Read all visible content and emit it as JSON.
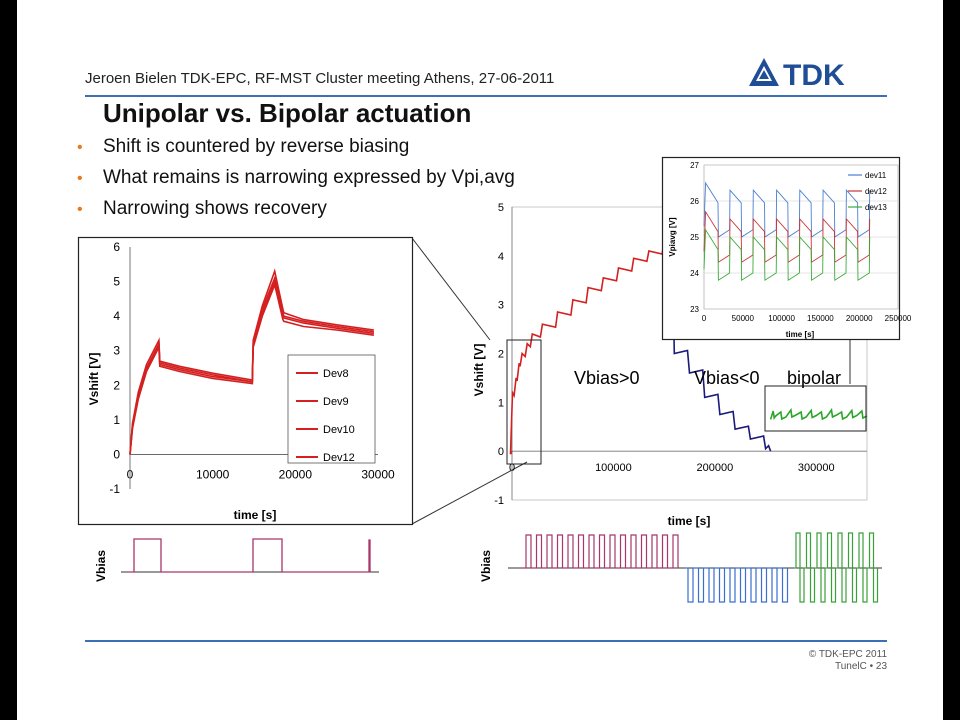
{
  "header": {
    "text": "Jeroen Bielen TDK-EPC, RF-MST Cluster meeting Athens, 27-06-2011",
    "logo_text": "TDK"
  },
  "title": "Unipolar vs. Bipolar actuation",
  "bullets": [
    "Shift is countered by reverse biasing",
    "What remains is narrowing expressed by Vpi,avg",
    "Narrowing shows recovery"
  ],
  "footer": {
    "copyright": "© TDK-EPC 2011",
    "page": "TunelC • 23"
  },
  "colors": {
    "accent_rule": "#3d6fb4",
    "bullet": "#e8791d",
    "red_series": "#d42020",
    "navy_series": "#1a1a7a",
    "green_series": "#2aa62a",
    "vbias_pulse": "#a8366a",
    "vbias_neg": "#3a6fd0",
    "vbias_bipolar": "#3aa03a"
  },
  "chart_data": [
    {
      "type": "line",
      "xlabel": "time [s]",
      "ylabel": "Vshift [V]",
      "xlim": [
        0,
        30000
      ],
      "ylim": [
        -1,
        6
      ],
      "xticks": [
        "0",
        "10000",
        "20000",
        "30000"
      ],
      "yticks": [
        "-1",
        "0",
        "1",
        "2",
        "3",
        "4",
        "5",
        "6"
      ],
      "legend": [
        "Dev8",
        "Dev9",
        "Dev10",
        "Dev12"
      ],
      "legend_position": "right",
      "series": [
        {
          "name": "Dev8",
          "x": [
            0,
            300,
            1000,
            2000,
            3500,
            3600,
            6000,
            10000,
            14800,
            14900,
            16000,
            17500,
            18500,
            18600,
            21000,
            25000,
            29500
          ],
          "y": [
            0,
            0.9,
            1.8,
            2.6,
            3.3,
            2.7,
            2.55,
            2.35,
            2.15,
            3.3,
            4.3,
            5.3,
            4.2,
            4.1,
            3.9,
            3.75,
            3.6
          ]
        },
        {
          "name": "Dev9",
          "x": [
            0,
            300,
            1000,
            2000,
            3500,
            3600,
            6000,
            10000,
            14800,
            14900,
            16000,
            17500,
            18500,
            18600,
            21000,
            25000,
            29500
          ],
          "y": [
            0,
            0.85,
            1.7,
            2.5,
            3.2,
            2.65,
            2.5,
            2.3,
            2.1,
            3.2,
            4.2,
            5.1,
            4.1,
            4.0,
            3.85,
            3.7,
            3.55
          ]
        },
        {
          "name": "Dev10",
          "x": [
            0,
            300,
            1000,
            2000,
            3500,
            3600,
            6000,
            10000,
            14800,
            14900,
            16000,
            17500,
            18500,
            18600,
            21000,
            25000,
            29500
          ],
          "y": [
            0,
            0.8,
            1.65,
            2.45,
            3.15,
            2.6,
            2.45,
            2.25,
            2.1,
            3.15,
            4.1,
            5.0,
            4.0,
            3.95,
            3.8,
            3.65,
            3.5
          ]
        },
        {
          "name": "Dev12",
          "x": [
            0,
            300,
            1000,
            2000,
            3500,
            3600,
            6000,
            10000,
            14800,
            14900,
            16000,
            17500,
            18500,
            18600,
            21000,
            25000,
            29500
          ],
          "y": [
            0,
            0.75,
            1.6,
            2.4,
            3.1,
            2.55,
            2.4,
            2.2,
            2.05,
            3.1,
            4.0,
            4.9,
            3.9,
            3.85,
            3.7,
            3.6,
            3.45
          ]
        }
      ]
    },
    {
      "type": "line",
      "xlabel": "time [s]",
      "ylabel": "Vshift [V]",
      "xlim": [
        0,
        350000
      ],
      "ylim": [
        -1,
        5
      ],
      "xticks": [
        "0",
        "100000",
        "200000",
        "300000"
      ],
      "yticks": [
        "-1",
        "0",
        "1",
        "2",
        "3",
        "4",
        "5"
      ],
      "annotations": [
        "Vbias>0",
        "Vbias<0",
        "bipolar"
      ],
      "series": [
        {
          "phase": "Vbias>0",
          "x": [
            0,
            500,
            4000,
            7000,
            10000,
            15000,
            20000,
            30000,
            45000,
            60000,
            75000,
            90000,
            105000,
            120000,
            135000,
            150000,
            155000
          ],
          "y": [
            0,
            1.2,
            1.5,
            1.8,
            2.0,
            2.2,
            2.4,
            2.6,
            2.85,
            3.1,
            3.35,
            3.55,
            3.75,
            3.95,
            4.1,
            4.3,
            4.2
          ]
        },
        {
          "phase": "Vbias<0",
          "x": [
            155000,
            160000,
            175000,
            190000,
            205000,
            220000,
            235000,
            250000,
            255000
          ],
          "y": [
            4.2,
            2.0,
            1.6,
            1.1,
            0.75,
            0.45,
            0.25,
            0.05,
            0.0
          ]
        },
        {
          "phase": "bipolar",
          "x": [
            255000,
            260000,
            270000,
            280000,
            290000,
            300000,
            310000,
            320000,
            330000,
            340000,
            350000
          ],
          "y": [
            0.65,
            0.72,
            0.7,
            0.74,
            0.7,
            0.73,
            0.7,
            0.74,
            0.7,
            0.73,
            0.72
          ]
        }
      ]
    },
    {
      "type": "line",
      "xlabel": "time [s]",
      "ylabel": "Vpiavg [V]",
      "xlim": [
        0,
        250000
      ],
      "ylim": [
        23,
        27
      ],
      "xticks": [
        "0",
        "50000",
        "100000",
        "150000",
        "200000",
        "250000"
      ],
      "yticks": [
        "23",
        "24",
        "25",
        "26",
        "27"
      ],
      "legend": [
        "dev11",
        "dev12",
        "dev13"
      ],
      "legend_position": "top-right",
      "series": [
        {
          "name": "dev11",
          "level_high": 26.1,
          "level_low": 25.0
        },
        {
          "name": "dev12",
          "level_high": 25.3,
          "level_low": 24.3
        },
        {
          "name": "dev13",
          "level_high": 24.8,
          "level_low": 23.8
        }
      ]
    }
  ],
  "vbias_labels": {
    "left": "Vbias",
    "right": "Vbias"
  }
}
